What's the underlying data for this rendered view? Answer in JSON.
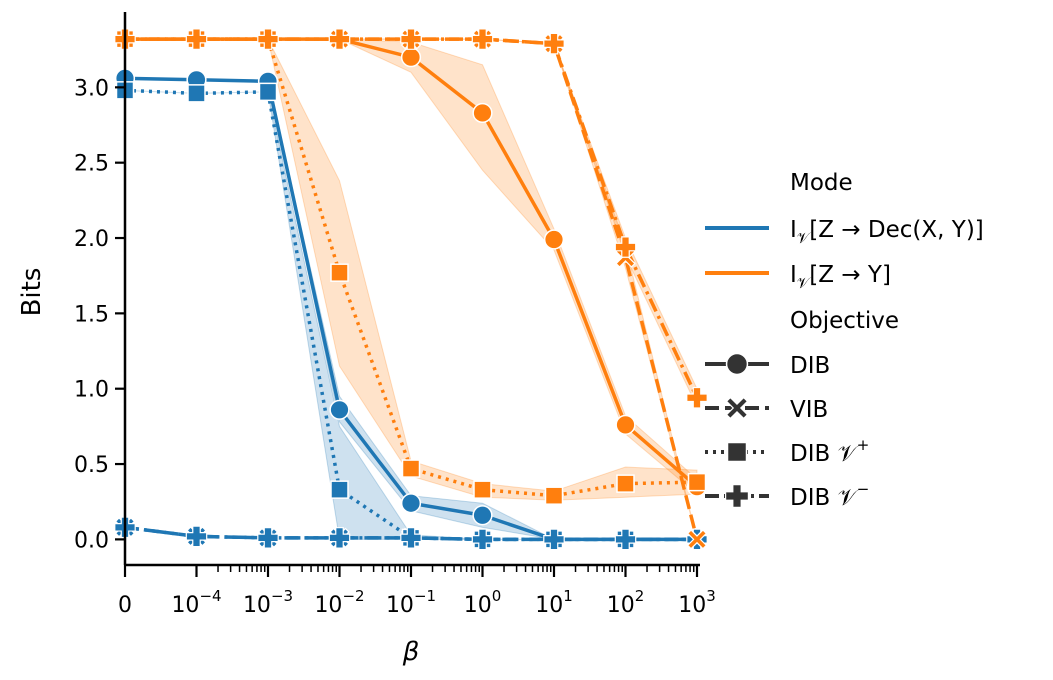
{
  "chart_data": {
    "type": "line",
    "xlabel": "β",
    "ylabel": "Bits",
    "xscale": "symlog",
    "x_categories": [
      "0",
      "1e-4",
      "1e-3",
      "1e-2",
      "1e-1",
      "1e0",
      "1e1",
      "1e2",
      "1e3"
    ],
    "x_tick_labels": [
      {
        "base": "0",
        "exp": ""
      },
      {
        "base": "10",
        "exp": "−4"
      },
      {
        "base": "10",
        "exp": "−3"
      },
      {
        "base": "10",
        "exp": "−2"
      },
      {
        "base": "10",
        "exp": "−1"
      },
      {
        "base": "10",
        "exp": "0"
      },
      {
        "base": "10",
        "exp": "1"
      },
      {
        "base": "10",
        "exp": "2"
      },
      {
        "base": "10",
        "exp": "3"
      }
    ],
    "y_ticks": [
      "0.0",
      "0.5",
      "1.0",
      "1.5",
      "2.0",
      "2.5",
      "3.0"
    ],
    "ylim": [
      -0.17,
      3.5
    ],
    "grid": false,
    "legend_placement": "right",
    "legend": {
      "mode_title": "Mode",
      "modes": [
        {
          "key": "dec",
          "color": "#1f77b4",
          "prefix": "I",
          "sub": "𝒱",
          "label": "[Z → Dec(X, Y)]"
        },
        {
          "key": "y",
          "color": "#ff7f0e",
          "prefix": "I",
          "sub": "𝒱",
          "label": "[Z → Y]"
        }
      ],
      "objective_title": "Objective",
      "objectives": [
        {
          "key": "DIB",
          "label": "DIB",
          "sup": "",
          "marker": "circle",
          "dash": ""
        },
        {
          "key": "VIB",
          "label": "VIB",
          "sup": "",
          "marker": "x",
          "dash": "14,6"
        },
        {
          "key": "DIBp",
          "label": "DIB 𝒱",
          "sup": "+",
          "marker": "square",
          "dash": "3,5"
        },
        {
          "key": "DIBm",
          "label": "DIB 𝒱",
          "sup": "−",
          "marker": "plus",
          "dash": "14,5,3,5"
        }
      ]
    },
    "series": [
      {
        "mode": "dec",
        "objective": "DIB",
        "points": [
          [
            0,
            3.06
          ],
          [
            1,
            3.05
          ],
          [
            2,
            3.04
          ],
          [
            3,
            0.86
          ],
          [
            4,
            0.24
          ],
          [
            5,
            0.16
          ],
          [
            6,
            0.0
          ],
          [
            7,
            0.0
          ],
          [
            8,
            0.0
          ]
        ],
        "band": [
          [
            0,
            3.06,
            3.06
          ],
          [
            1,
            3.05,
            3.05
          ],
          [
            2,
            3.04,
            3.04
          ],
          [
            3,
            0.78,
            0.95
          ],
          [
            4,
            0.19,
            0.29
          ],
          [
            5,
            0.08,
            0.24
          ],
          [
            6,
            0.0,
            0.0
          ],
          [
            7,
            0.0,
            0.0
          ],
          [
            8,
            0.0,
            0.0
          ]
        ]
      },
      {
        "mode": "dec",
        "objective": "VIB",
        "points": [
          [
            0,
            0.08
          ],
          [
            1,
            0.02
          ],
          [
            2,
            0.01
          ],
          [
            3,
            0.01
          ],
          [
            4,
            0.01
          ],
          [
            5,
            0.0
          ],
          [
            6,
            0.0
          ],
          [
            7,
            0.0
          ],
          [
            8,
            0.0
          ]
        ]
      },
      {
        "mode": "dec",
        "objective": "DIBp",
        "points": [
          [
            0,
            2.98
          ],
          [
            1,
            2.96
          ],
          [
            2,
            2.97
          ],
          [
            3,
            0.33
          ],
          [
            4,
            0.01
          ],
          [
            5,
            0.0
          ],
          [
            6,
            0.0
          ],
          [
            7,
            0.0
          ],
          [
            8,
            0.0
          ]
        ],
        "band": [
          [
            0,
            2.98,
            2.98
          ],
          [
            1,
            2.96,
            2.96
          ],
          [
            2,
            2.97,
            2.97
          ],
          [
            3,
            0.0,
            0.75
          ],
          [
            4,
            0.0,
            0.03
          ],
          [
            5,
            0.0,
            0.0
          ],
          [
            6,
            0.0,
            0.0
          ],
          [
            7,
            0.0,
            0.0
          ],
          [
            8,
            0.0,
            0.0
          ]
        ]
      },
      {
        "mode": "dec",
        "objective": "DIBm",
        "points": [
          [
            0,
            0.08
          ],
          [
            1,
            0.02
          ],
          [
            2,
            0.01
          ],
          [
            3,
            0.01
          ],
          [
            4,
            0.01
          ],
          [
            5,
            0.0
          ],
          [
            6,
            0.0
          ],
          [
            7,
            0.0
          ],
          [
            8,
            0.0
          ]
        ]
      },
      {
        "mode": "y",
        "objective": "DIB",
        "points": [
          [
            0,
            3.32
          ],
          [
            1,
            3.32
          ],
          [
            2,
            3.32
          ],
          [
            3,
            3.32
          ],
          [
            4,
            3.2
          ],
          [
            5,
            2.83
          ],
          [
            6,
            1.99
          ],
          [
            7,
            0.76
          ],
          [
            8,
            0.35
          ]
        ],
        "band": [
          [
            0,
            3.32,
            3.32
          ],
          [
            1,
            3.32,
            3.32
          ],
          [
            2,
            3.32,
            3.32
          ],
          [
            3,
            3.32,
            3.32
          ],
          [
            4,
            3.1,
            3.3
          ],
          [
            5,
            2.45,
            3.15
          ],
          [
            6,
            1.92,
            2.06
          ],
          [
            7,
            0.7,
            0.82
          ],
          [
            8,
            0.3,
            0.4
          ]
        ]
      },
      {
        "mode": "y",
        "objective": "VIB",
        "points": [
          [
            0,
            3.32
          ],
          [
            1,
            3.32
          ],
          [
            2,
            3.32
          ],
          [
            3,
            3.32
          ],
          [
            4,
            3.32
          ],
          [
            5,
            3.32
          ],
          [
            6,
            3.29
          ],
          [
            7,
            1.87
          ],
          [
            8,
            0.0
          ]
        ],
        "band": [
          [
            0,
            3.32,
            3.32
          ],
          [
            1,
            3.32,
            3.32
          ],
          [
            2,
            3.32,
            3.32
          ],
          [
            3,
            3.32,
            3.32
          ],
          [
            4,
            3.32,
            3.32
          ],
          [
            5,
            3.32,
            3.32
          ],
          [
            6,
            3.29,
            3.29
          ],
          [
            7,
            1.8,
            1.95
          ],
          [
            8,
            0.0,
            0.0
          ]
        ]
      },
      {
        "mode": "y",
        "objective": "DIBp",
        "points": [
          [
            0,
            3.32
          ],
          [
            1,
            3.32
          ],
          [
            2,
            3.32
          ],
          [
            3,
            1.77
          ],
          [
            4,
            0.47
          ],
          [
            5,
            0.33
          ],
          [
            6,
            0.29
          ],
          [
            7,
            0.37
          ],
          [
            8,
            0.38
          ]
        ],
        "band": [
          [
            0,
            3.32,
            3.32
          ],
          [
            1,
            3.32,
            3.32
          ],
          [
            2,
            3.32,
            3.32
          ],
          [
            3,
            1.15,
            2.38
          ],
          [
            4,
            0.42,
            0.52
          ],
          [
            5,
            0.28,
            0.37
          ],
          [
            6,
            0.26,
            0.32
          ],
          [
            7,
            0.28,
            0.48
          ],
          [
            8,
            0.3,
            0.46
          ]
        ]
      },
      {
        "mode": "y",
        "objective": "DIBm",
        "points": [
          [
            0,
            3.32
          ],
          [
            1,
            3.32
          ],
          [
            2,
            3.32
          ],
          [
            3,
            3.32
          ],
          [
            4,
            3.32
          ],
          [
            5,
            3.32
          ],
          [
            6,
            3.29
          ],
          [
            7,
            1.94
          ],
          [
            8,
            0.94
          ]
        ],
        "band": [
          [
            0,
            3.32,
            3.32
          ],
          [
            1,
            3.32,
            3.32
          ],
          [
            2,
            3.32,
            3.32
          ],
          [
            3,
            3.32,
            3.32
          ],
          [
            4,
            3.32,
            3.32
          ],
          [
            5,
            3.32,
            3.32
          ],
          [
            6,
            3.29,
            3.29
          ],
          [
            7,
            1.88,
            2.0
          ],
          [
            8,
            0.88,
            1.0
          ]
        ]
      }
    ]
  }
}
